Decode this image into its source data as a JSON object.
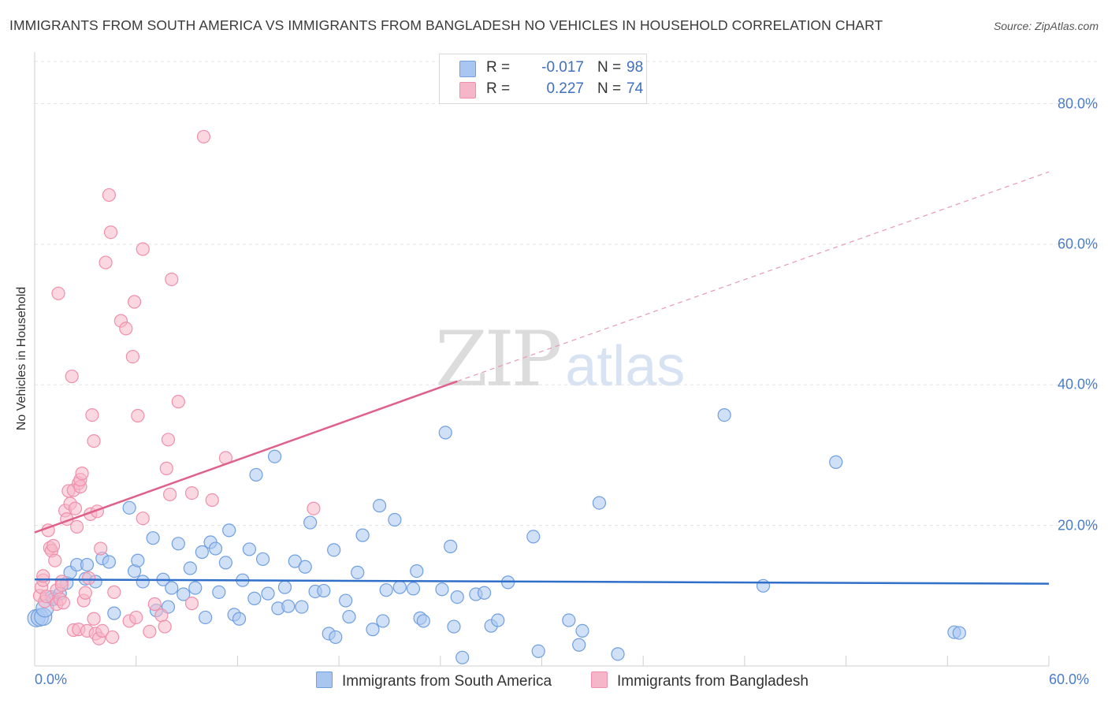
{
  "title": "IMMIGRANTS FROM SOUTH AMERICA VS IMMIGRANTS FROM BANGLADESH NO VEHICLES IN HOUSEHOLD CORRELATION CHART",
  "source": "Source: ZipAtlas.com",
  "watermark": {
    "zip": "ZIP",
    "atlas": "atlas"
  },
  "legend_top": {
    "rows": [
      {
        "r_label": "R =",
        "r_value": "-0.017",
        "n_label": "N =",
        "n_value": "98",
        "color": "#a9c6f0"
      },
      {
        "r_label": "R =",
        "r_value": "0.227",
        "n_label": "N =",
        "n_value": "74",
        "color": "#f6b6c9"
      }
    ]
  },
  "chart_data": {
    "type": "scatter",
    "title": "IMMIGRANTS FROM SOUTH AMERICA VS IMMIGRANTS FROM BANGLADESH NO VEHICLES IN HOUSEHOLD CORRELATION CHART",
    "xlabel": "",
    "ylabel": "No Vehicles in Household",
    "xlim": [
      0,
      60
    ],
    "ylim": [
      0,
      86
    ],
    "x_tick_labels": [
      "0.0%",
      "60.0%"
    ],
    "y_ticks": [
      20,
      40,
      60,
      80
    ],
    "y_tick_labels": [
      "20.0%",
      "40.0%",
      "60.0%",
      "80.0%"
    ],
    "grid": true,
    "legend_position": "bottom",
    "series": [
      {
        "name": "Immigrants from South America",
        "color": "#a9c6f0",
        "stroke": "#6f9fe0",
        "trend_color": "#2f6ec9",
        "trend": {
          "x0": 0.0,
          "y0": 12.3,
          "x1": 60.0,
          "y1": 11.7
        },
        "points": [
          [
            0.1,
            6.8
          ],
          [
            0.3,
            6.9
          ],
          [
            0.5,
            7.0
          ],
          [
            0.6,
            8.2
          ],
          [
            1.0,
            9.8
          ],
          [
            1.1,
            9.5
          ],
          [
            1.5,
            10.3
          ],
          [
            1.9,
            11.8
          ],
          [
            2.1,
            13.3
          ],
          [
            2.5,
            14.4
          ],
          [
            3.0,
            12.4
          ],
          [
            3.1,
            14.4
          ],
          [
            3.6,
            12.0
          ],
          [
            4.0,
            15.3
          ],
          [
            4.4,
            14.8
          ],
          [
            4.7,
            7.5
          ],
          [
            5.6,
            22.5
          ],
          [
            5.9,
            13.5
          ],
          [
            6.1,
            15.0
          ],
          [
            6.4,
            12.0
          ],
          [
            7.0,
            18.2
          ],
          [
            7.2,
            7.9
          ],
          [
            7.6,
            12.3
          ],
          [
            7.9,
            8.4
          ],
          [
            8.1,
            11.1
          ],
          [
            8.5,
            17.4
          ],
          [
            8.8,
            10.2
          ],
          [
            9.2,
            13.9
          ],
          [
            9.5,
            11.1
          ],
          [
            9.9,
            16.2
          ],
          [
            10.1,
            6.9
          ],
          [
            10.4,
            17.6
          ],
          [
            10.7,
            16.7
          ],
          [
            10.9,
            10.5
          ],
          [
            11.3,
            14.7
          ],
          [
            11.5,
            19.3
          ],
          [
            11.8,
            7.3
          ],
          [
            12.1,
            6.7
          ],
          [
            12.3,
            12.2
          ],
          [
            12.7,
            16.6
          ],
          [
            13.0,
            9.6
          ],
          [
            13.1,
            27.2
          ],
          [
            13.5,
            15.2
          ],
          [
            13.8,
            10.3
          ],
          [
            14.2,
            29.8
          ],
          [
            14.4,
            8.2
          ],
          [
            14.8,
            11.2
          ],
          [
            15.0,
            8.5
          ],
          [
            15.4,
            14.9
          ],
          [
            15.8,
            8.4
          ],
          [
            16.0,
            14.1
          ],
          [
            16.3,
            20.4
          ],
          [
            16.6,
            10.6
          ],
          [
            17.1,
            10.7
          ],
          [
            17.4,
            4.6
          ],
          [
            17.7,
            16.5
          ],
          [
            17.8,
            4.1
          ],
          [
            18.4,
            9.3
          ],
          [
            18.6,
            7.0
          ],
          [
            19.1,
            13.3
          ],
          [
            19.4,
            18.6
          ],
          [
            20.0,
            5.2
          ],
          [
            20.4,
            22.8
          ],
          [
            20.6,
            6.4
          ],
          [
            20.8,
            10.8
          ],
          [
            21.3,
            20.8
          ],
          [
            21.6,
            11.2
          ],
          [
            22.4,
            11.0
          ],
          [
            22.6,
            13.5
          ],
          [
            22.8,
            6.8
          ],
          [
            23.0,
            6.4
          ],
          [
            24.1,
            10.9
          ],
          [
            24.3,
            33.2
          ],
          [
            24.6,
            17.0
          ],
          [
            24.8,
            5.6
          ],
          [
            25.0,
            9.8
          ],
          [
            25.3,
            1.2
          ],
          [
            26.1,
            10.2
          ],
          [
            26.6,
            10.4
          ],
          [
            27.0,
            5.7
          ],
          [
            27.4,
            6.5
          ],
          [
            28.0,
            11.9
          ],
          [
            29.5,
            18.4
          ],
          [
            29.8,
            2.1
          ],
          [
            31.6,
            6.5
          ],
          [
            32.2,
            3.0
          ],
          [
            32.4,
            5.0
          ],
          [
            33.4,
            23.2
          ],
          [
            34.5,
            1.7
          ],
          [
            40.8,
            35.7
          ],
          [
            43.1,
            11.4
          ],
          [
            47.4,
            29.0
          ],
          [
            54.4,
            4.8
          ],
          [
            54.7,
            4.7
          ]
        ]
      },
      {
        "name": "Immigrants from Bangladesh",
        "color": "#f6b6c9",
        "stroke": "#ef8fab",
        "trend_color": "#e0608a",
        "trend": {
          "x0": 0.0,
          "y0": 19.0,
          "x1": 25.0,
          "y1": 40.5
        },
        "trend_dashed": {
          "x0": 25.0,
          "y0": 40.5,
          "x1": 60.0,
          "y1": 70.3
        },
        "points": [
          [
            0.3,
            10.0
          ],
          [
            0.4,
            11.2
          ],
          [
            0.5,
            12.2
          ],
          [
            0.5,
            12.8
          ],
          [
            0.6,
            9.2
          ],
          [
            0.7,
            9.9
          ],
          [
            0.8,
            19.3
          ],
          [
            0.9,
            16.8
          ],
          [
            1.0,
            16.4
          ],
          [
            1.1,
            17.1
          ],
          [
            1.2,
            15.0
          ],
          [
            1.3,
            8.8
          ],
          [
            1.3,
            10.8
          ],
          [
            1.4,
            53.0
          ],
          [
            1.5,
            9.5
          ],
          [
            1.6,
            12.0
          ],
          [
            1.6,
            11.5
          ],
          [
            1.7,
            9.0
          ],
          [
            1.8,
            22.1
          ],
          [
            1.9,
            20.9
          ],
          [
            2.0,
            24.9
          ],
          [
            2.1,
            23.1
          ],
          [
            2.2,
            41.2
          ],
          [
            2.3,
            25.0
          ],
          [
            2.3,
            5.1
          ],
          [
            2.4,
            22.4
          ],
          [
            2.5,
            19.8
          ],
          [
            2.6,
            5.2
          ],
          [
            2.6,
            26.0
          ],
          [
            2.7,
            25.5
          ],
          [
            2.7,
            26.5
          ],
          [
            2.8,
            27.4
          ],
          [
            2.9,
            9.3
          ],
          [
            3.0,
            10.4
          ],
          [
            3.1,
            5.0
          ],
          [
            3.2,
            12.5
          ],
          [
            3.3,
            21.6
          ],
          [
            3.4,
            35.7
          ],
          [
            3.5,
            6.7
          ],
          [
            3.5,
            32.0
          ],
          [
            3.6,
            4.6
          ],
          [
            3.7,
            22.0
          ],
          [
            3.8,
            3.9
          ],
          [
            3.9,
            16.7
          ],
          [
            4.0,
            5.0
          ],
          [
            4.2,
            57.4
          ],
          [
            4.4,
            67.0
          ],
          [
            4.5,
            61.7
          ],
          [
            4.6,
            4.1
          ],
          [
            4.7,
            10.5
          ],
          [
            5.1,
            49.1
          ],
          [
            5.4,
            48.0
          ],
          [
            5.6,
            6.4
          ],
          [
            5.8,
            44.0
          ],
          [
            5.9,
            51.8
          ],
          [
            6.0,
            6.9
          ],
          [
            6.1,
            35.6
          ],
          [
            6.4,
            21.0
          ],
          [
            6.4,
            59.3
          ],
          [
            6.8,
            4.9
          ],
          [
            7.1,
            8.8
          ],
          [
            7.5,
            7.2
          ],
          [
            7.7,
            5.6
          ],
          [
            7.8,
            28.1
          ],
          [
            7.9,
            32.2
          ],
          [
            8.0,
            24.4
          ],
          [
            8.1,
            55.0
          ],
          [
            8.5,
            37.6
          ],
          [
            9.3,
            24.6
          ],
          [
            9.3,
            8.9
          ],
          [
            10.0,
            75.3
          ],
          [
            10.5,
            23.6
          ],
          [
            11.3,
            29.6
          ],
          [
            16.5,
            22.4
          ]
        ]
      }
    ]
  },
  "legend_bottom": [
    {
      "label": "Immigrants from South America",
      "color": "#a9c6f0"
    },
    {
      "label": "Immigrants from Bangladesh",
      "color": "#f6b6c9"
    }
  ]
}
